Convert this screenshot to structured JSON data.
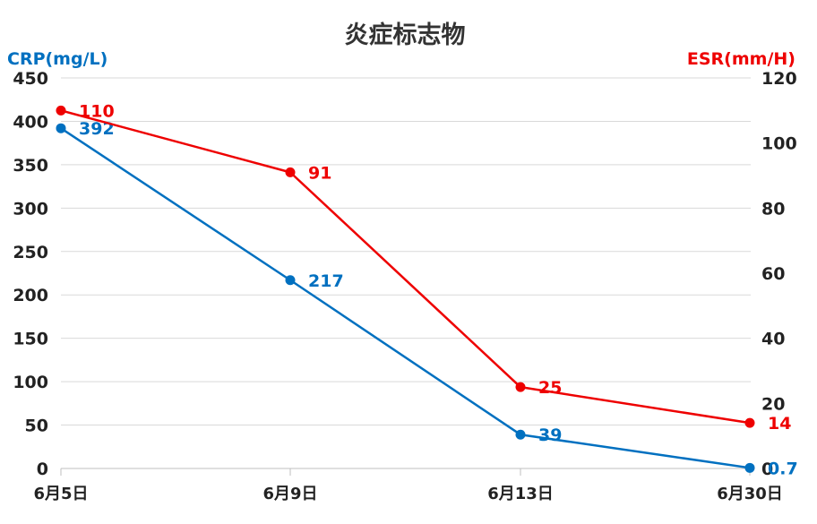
{
  "chart_data": {
    "type": "line",
    "title": "炎症标志物",
    "categories": [
      "6月5日",
      "6月9日",
      "6月13日",
      "6月30日"
    ],
    "y_left": {
      "label": "CRP(mg/L)",
      "ylim": [
        0,
        450
      ],
      "ticks": [
        0,
        50,
        100,
        150,
        200,
        250,
        300,
        350,
        400,
        450
      ]
    },
    "y_right": {
      "label": "ESR(mm/H)",
      "ylim": [
        0,
        120
      ],
      "ticks": [
        0,
        20,
        40,
        60,
        80,
        100,
        120
      ]
    },
    "series": [
      {
        "name": "CRP(mg/L)",
        "axis": "left",
        "color": "#0070c0",
        "values": [
          392,
          217,
          39,
          0.7
        ],
        "labels": [
          "392",
          "217",
          "39",
          "0.7"
        ]
      },
      {
        "name": "ESR(mm/H)",
        "axis": "right",
        "color": "#ee0000",
        "values": [
          110,
          91,
          25,
          14
        ],
        "labels": [
          "110",
          "91",
          "25",
          "14"
        ]
      }
    ],
    "grid": true,
    "legend": "none"
  },
  "colors": {
    "left_axis_title": "#0070c0",
    "right_axis_title": "#ee0000",
    "title": "#333333",
    "tick": "#222222",
    "grid": "#d9d9d9"
  }
}
